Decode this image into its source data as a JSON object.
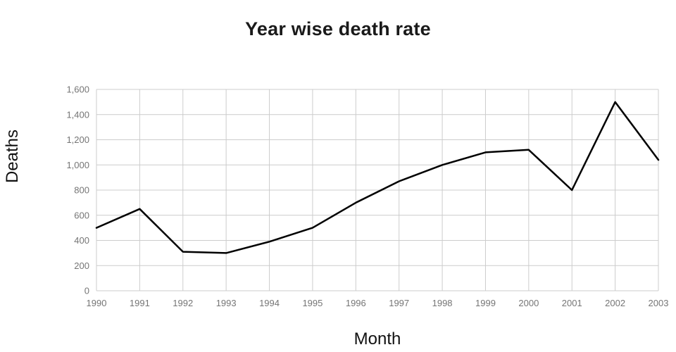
{
  "chart_data": {
    "type": "line",
    "title": "Year wise death rate",
    "xlabel": "Month",
    "ylabel": "Deaths",
    "categories": [
      "1990",
      "1991",
      "1992",
      "1993",
      "1994",
      "1995",
      "1996",
      "1997",
      "1998",
      "1999",
      "2000",
      "2001",
      "2002",
      "2003"
    ],
    "values": [
      500,
      650,
      310,
      300,
      390,
      500,
      700,
      870,
      1000,
      1100,
      1120,
      800,
      1500,
      1040
    ],
    "ylim": [
      0,
      1600
    ],
    "ytick_step": 200,
    "grid": true,
    "legend": "none",
    "line_color": "#000000",
    "grid_color": "#cccccc",
    "tick_label_color": "#757575",
    "tick_font_size": 13
  }
}
